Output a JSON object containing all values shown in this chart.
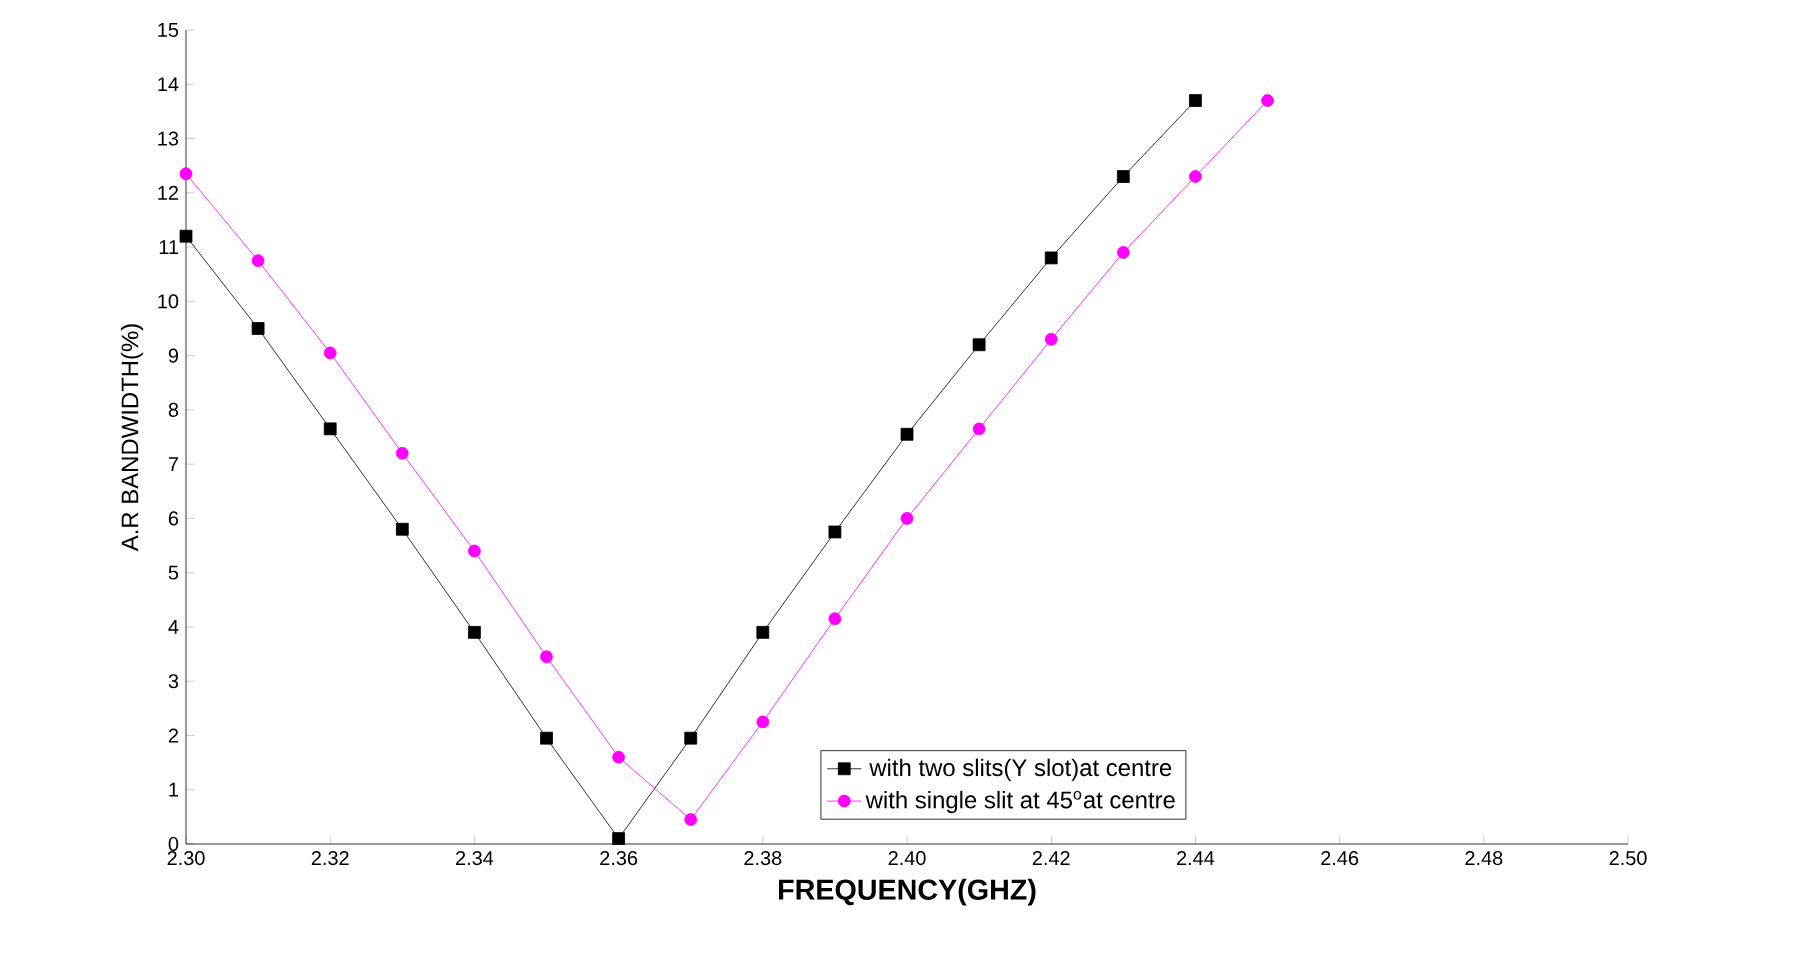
{
  "chart_data": {
    "type": "line",
    "xlabel": "FREQUENCY(GHZ)",
    "ylabel": "A.R BANDWIDTH(%)",
    "x": [
      2.3,
      2.31,
      2.32,
      2.33,
      2.34,
      2.35,
      2.36,
      2.37,
      2.38,
      2.39,
      2.4,
      2.41,
      2.42,
      2.43,
      2.44,
      2.45
    ],
    "series": [
      {
        "name": "with two slits(Y slot)at centre",
        "color": "#000000",
        "marker": "square",
        "values": [
          11.2,
          9.5,
          7.65,
          5.8,
          3.9,
          1.95,
          0.1,
          1.95,
          3.9,
          5.75,
          7.55,
          9.2,
          10.8,
          12.3,
          13.7,
          null
        ]
      },
      {
        "name": "with single slit at 45$^{o}$at centre",
        "color": "#ff00ff",
        "marker": "circle",
        "values": [
          12.35,
          10.75,
          9.05,
          7.2,
          5.4,
          3.45,
          1.6,
          0.45,
          2.25,
          4.15,
          6.0,
          7.65,
          9.3,
          10.9,
          12.3,
          13.7
        ]
      }
    ],
    "xlim": [
      2.3,
      2.5
    ],
    "ylim": [
      0,
      15
    ],
    "xticks": [
      {
        "value": 2.3,
        "label": "2.30"
      },
      2.32,
      2.34,
      2.36,
      2.38,
      {
        "value": 2.4,
        "label": "2.40"
      },
      2.42,
      2.44,
      2.46,
      2.48,
      {
        "value": 2.5,
        "label": "2.50"
      }
    ],
    "yticks": [
      0,
      1,
      2,
      3,
      4,
      5,
      6,
      7,
      8,
      9,
      10,
      11,
      12,
      13,
      14,
      15
    ],
    "legend": "bottom right",
    "line_style": "solid",
    "grid": false
  }
}
